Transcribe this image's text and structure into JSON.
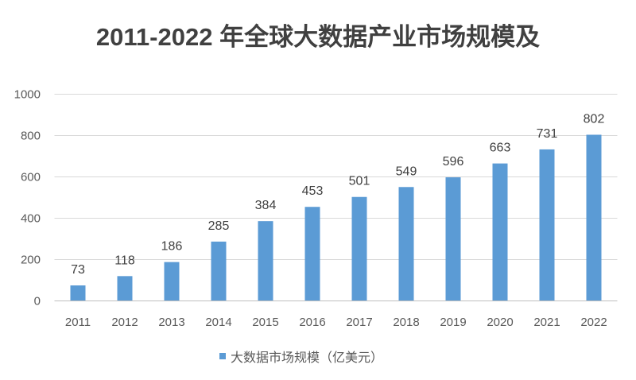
{
  "chart_data": {
    "type": "bar",
    "title": "2011-2022 年全球大数据产业市场规模及",
    "xlabel": "",
    "ylabel": "",
    "categories": [
      "2011",
      "2012",
      "2013",
      "2014",
      "2015",
      "2016",
      "2017",
      "2018",
      "2019",
      "2020",
      "2021",
      "2022"
    ],
    "series": [
      {
        "name": "大数据市场规模（亿美元）",
        "values": [
          73,
          118,
          186,
          285,
          384,
          453,
          501,
          549,
          596,
          663,
          731,
          802
        ]
      }
    ],
    "ylim": [
      0,
      1000
    ],
    "yticks": [
      0,
      200,
      400,
      600,
      800,
      1000
    ],
    "grid": true,
    "legend": "bottom-center",
    "data_labels": true,
    "colors": {
      "bar": "#5B9BD5",
      "grid": "#D9D9D9",
      "axis": "#BFBFBF",
      "title": "#404040",
      "text": "#595959"
    }
  }
}
